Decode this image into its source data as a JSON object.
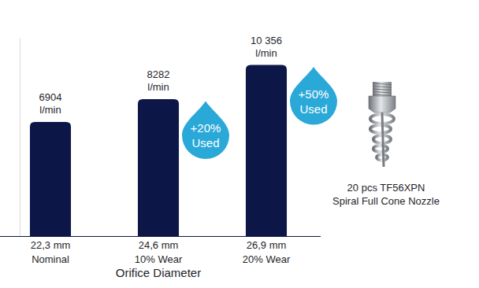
{
  "chart_data": {
    "type": "bar",
    "categories": [
      [
        "22,3 mm",
        "Nominal"
      ],
      [
        "24,6 mm",
        "10% Wear"
      ],
      [
        "26,9 mm",
        "20% Wear"
      ]
    ],
    "values": [
      6904,
      8282,
      10356
    ],
    "value_labels": [
      [
        "6904",
        "l/min"
      ],
      [
        "8282",
        "l/min"
      ],
      [
        "10 356",
        "l/min"
      ]
    ],
    "data_labels": true,
    "color": "#0c1747",
    "x_label": "Orifice Diameter",
    "ylim": [
      0,
      12000
    ],
    "yticks": [],
    "tick_labels": "x",
    "grid": false,
    "annotations": [
      {
        "text": [
          "+20%",
          "Used"
        ],
        "color": "#2aa8d8"
      },
      {
        "text": [
          "+50%",
          "Used"
        ],
        "color": "#2aa8d8"
      }
    ],
    "caption": [
      "20 pcs TF56XPN",
      "Spiral Full Cone Nozzle"
    ]
  }
}
